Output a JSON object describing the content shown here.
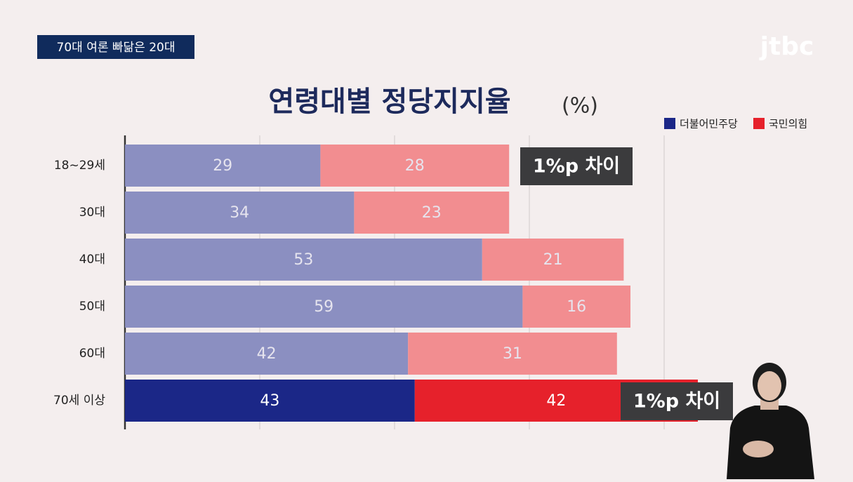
{
  "tag": "70대 여론 빠닮은 20대",
  "logo": "jtbc",
  "chart_data": {
    "type": "stacked-hbar",
    "title": "연령대별 정당지지율",
    "unit": "(%)",
    "categories": [
      "18~29세",
      "30대",
      "40대",
      "50대",
      "60대",
      "70세 이상"
    ],
    "highlight": "70세 이상",
    "series": [
      {
        "name": "더불어민주당",
        "color": "#1b2787",
        "faded_color": "#8b8fc1",
        "values": [
          29,
          34,
          53,
          59,
          42,
          43
        ]
      },
      {
        "name": "국민의힘",
        "color": "#e6212b",
        "faded_color": "#f28d90",
        "values": [
          28,
          23,
          21,
          16,
          31,
          42
        ]
      }
    ],
    "xlim": [
      0,
      100
    ],
    "xticks": [
      0,
      20,
      40,
      60,
      80
    ],
    "grid": true,
    "legend": "top-right",
    "annotations": [
      {
        "text": "1%p 차이",
        "category": "18~29세"
      },
      {
        "text": "1%p 차이",
        "category": "70세 이상"
      }
    ]
  }
}
